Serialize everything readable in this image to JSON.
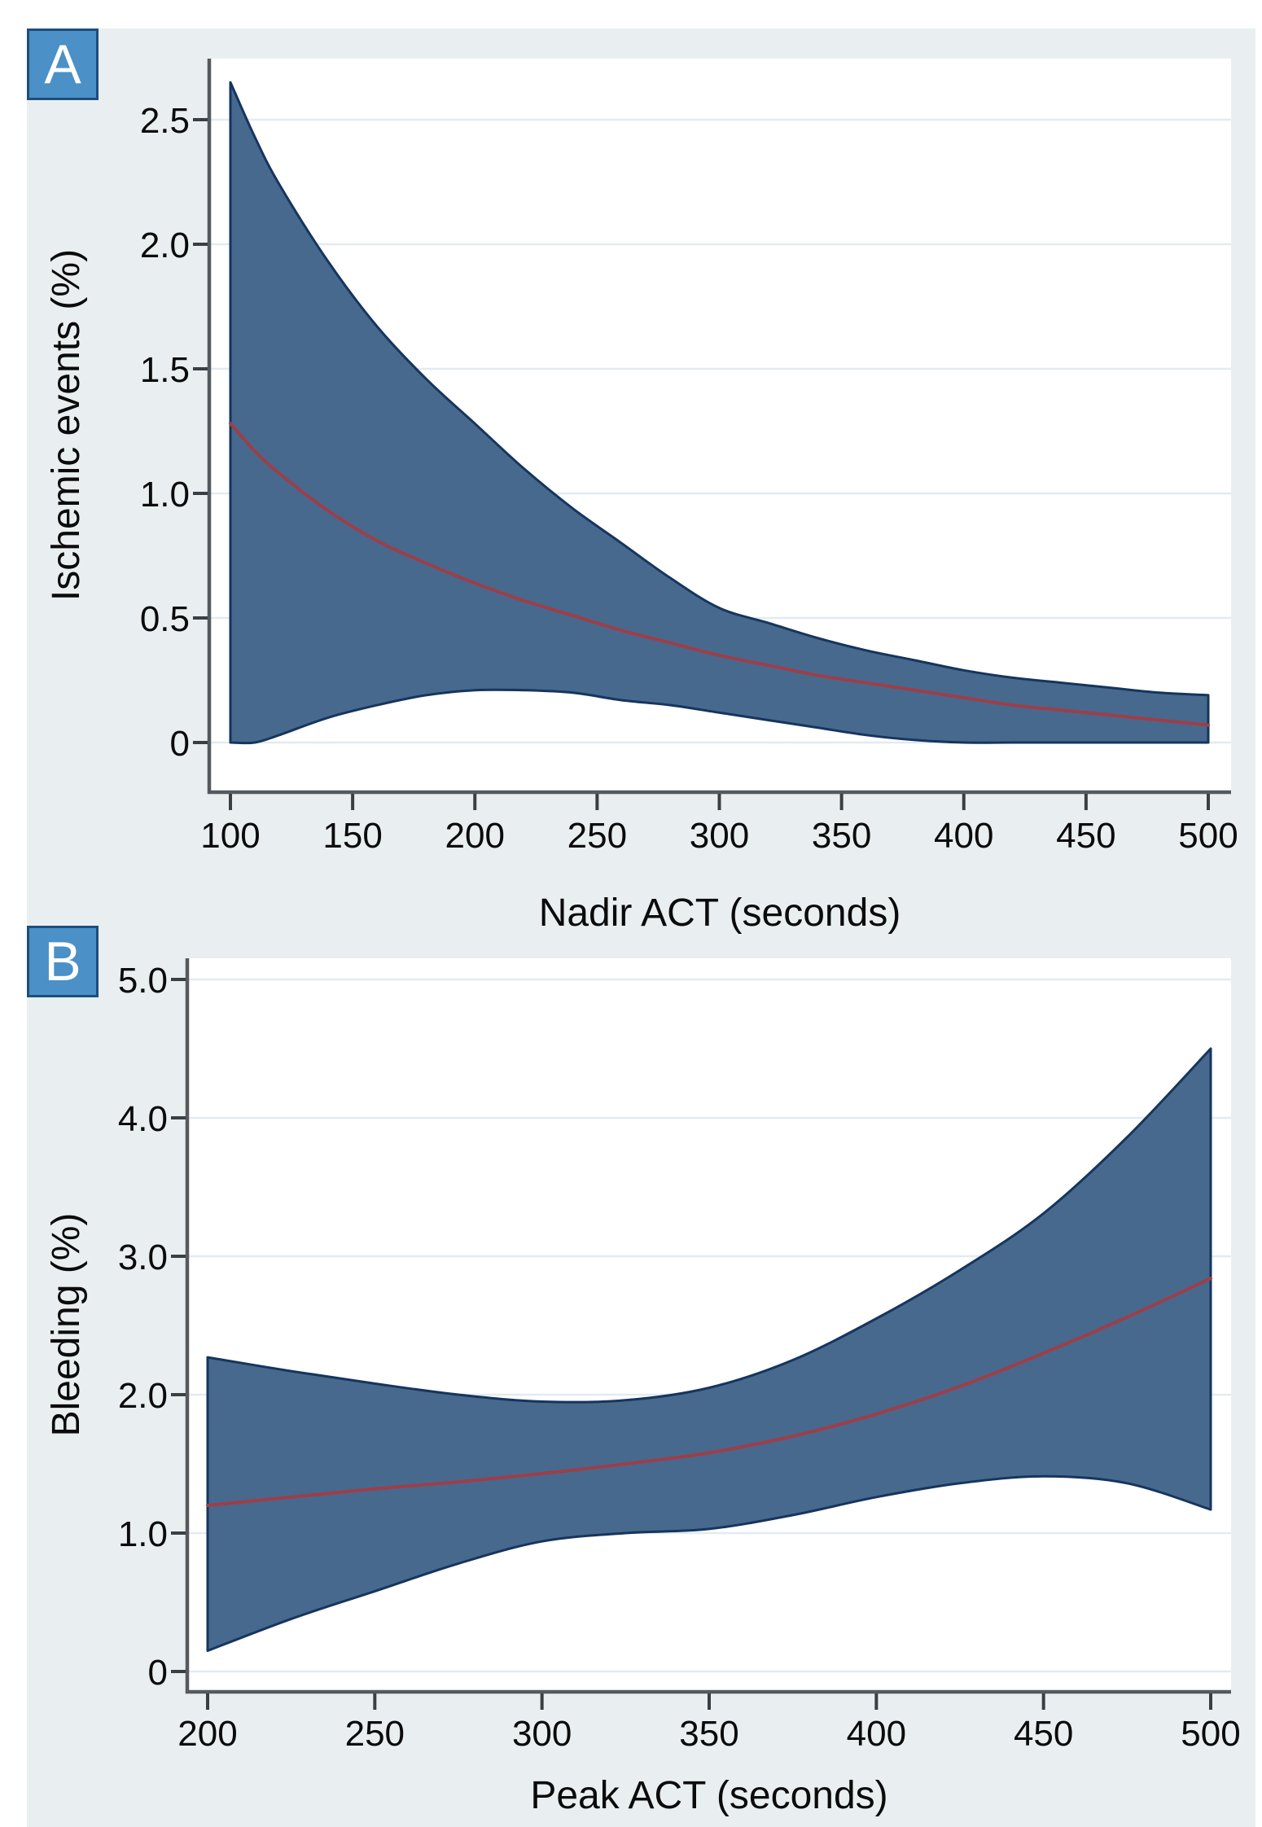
{
  "figure": {
    "page_bg": "#ffffff",
    "graph_bg": "#e9eff1",
    "plot_bg": "#ffffff",
    "grid_color": "#e2ebf2",
    "axis_color": "#545a5e",
    "tick_color": "#3a3f44",
    "text_color": "#0b0b0b",
    "band_fill": "#47698e",
    "band_edge": "#16355e",
    "line_color": "#9e3e48",
    "badge_bg": "#4b90c6",
    "badge_border": "#1d4e7c",
    "badge_text_color": "#ffffff"
  },
  "panels": [
    {
      "badge": "A",
      "ylabel": "Ischemic events (%)",
      "xlabel": "Nadir ACT (seconds)"
    },
    {
      "badge": "B",
      "ylabel": "Bleeding (%)",
      "xlabel": "Peak ACT (seconds)"
    }
  ],
  "chart_data": [
    {
      "type": "area",
      "panel": "A",
      "title": "",
      "xlabel": "Nadir ACT (seconds)",
      "ylabel": "Ischemic events (%)",
      "xlim": [
        100,
        500
      ],
      "ylim": [
        0,
        2.75
      ],
      "grid": true,
      "legend": "none",
      "xticks": {
        "values": [
          100,
          150,
          200,
          250,
          300,
          350,
          400,
          450,
          500
        ],
        "labels": [
          "100",
          "150",
          "200",
          "250",
          "300",
          "350",
          "400",
          "450",
          "500"
        ]
      },
      "yticks": {
        "values": [
          0,
          0.5,
          1.0,
          1.5,
          2.0,
          2.5
        ],
        "labels": [
          "0",
          "0.5",
          "1.0",
          "1.5",
          "2.0",
          "2.5"
        ]
      },
      "x": [
        100,
        110,
        120,
        140,
        160,
        180,
        200,
        220,
        240,
        260,
        280,
        300,
        320,
        340,
        360,
        380,
        400,
        420,
        440,
        460,
        480,
        500
      ],
      "series": [
        {
          "name": "estimate",
          "values": [
            1.28,
            1.17,
            1.08,
            0.93,
            0.81,
            0.72,
            0.64,
            0.57,
            0.51,
            0.45,
            0.4,
            0.35,
            0.31,
            0.27,
            0.24,
            0.21,
            0.18,
            0.15,
            0.13,
            0.11,
            0.09,
            0.07
          ]
        },
        {
          "name": "ci_upper",
          "values": [
            2.65,
            2.43,
            2.24,
            1.93,
            1.67,
            1.46,
            1.28,
            1.1,
            0.94,
            0.8,
            0.66,
            0.54,
            0.48,
            0.42,
            0.37,
            0.33,
            0.29,
            0.26,
            0.24,
            0.22,
            0.2,
            0.19
          ]
        },
        {
          "name": "ci_lower",
          "values": [
            0.0,
            0.0,
            0.03,
            0.1,
            0.15,
            0.19,
            0.21,
            0.21,
            0.2,
            0.17,
            0.15,
            0.12,
            0.09,
            0.06,
            0.03,
            0.01,
            0.0,
            0.0,
            0.0,
            0.0,
            0.0,
            0.0
          ]
        }
      ]
    },
    {
      "type": "area",
      "panel": "B",
      "title": "",
      "xlabel": "Peak ACT (seconds)",
      "ylabel": "Bleeding (%)",
      "xlim": [
        200,
        500
      ],
      "ylim": [
        0,
        5.15
      ],
      "grid": true,
      "legend": "none",
      "xticks": {
        "values": [
          200,
          250,
          300,
          350,
          400,
          450,
          500
        ],
        "labels": [
          "200",
          "250",
          "300",
          "350",
          "400",
          "450",
          "500"
        ]
      },
      "yticks": {
        "values": [
          0,
          1.0,
          2.0,
          3.0,
          4.0,
          5.0
        ],
        "labels": [
          "0",
          "1.0",
          "2.0",
          "3.0",
          "4.0",
          "5.0"
        ]
      },
      "x": [
        200,
        225,
        250,
        275,
        300,
        325,
        350,
        375,
        400,
        425,
        450,
        475,
        500
      ],
      "series": [
        {
          "name": "estimate",
          "values": [
            1.2,
            1.26,
            1.32,
            1.37,
            1.43,
            1.5,
            1.58,
            1.7,
            1.86,
            2.06,
            2.3,
            2.56,
            2.84
          ]
        },
        {
          "name": "ci_upper",
          "values": [
            2.27,
            2.17,
            2.08,
            2.0,
            1.95,
            1.96,
            2.05,
            2.25,
            2.55,
            2.9,
            3.31,
            3.86,
            4.5
          ]
        },
        {
          "name": "ci_lower",
          "values": [
            0.15,
            0.38,
            0.58,
            0.78,
            0.94,
            1.0,
            1.03,
            1.13,
            1.26,
            1.36,
            1.41,
            1.36,
            1.17
          ]
        }
      ]
    }
  ]
}
